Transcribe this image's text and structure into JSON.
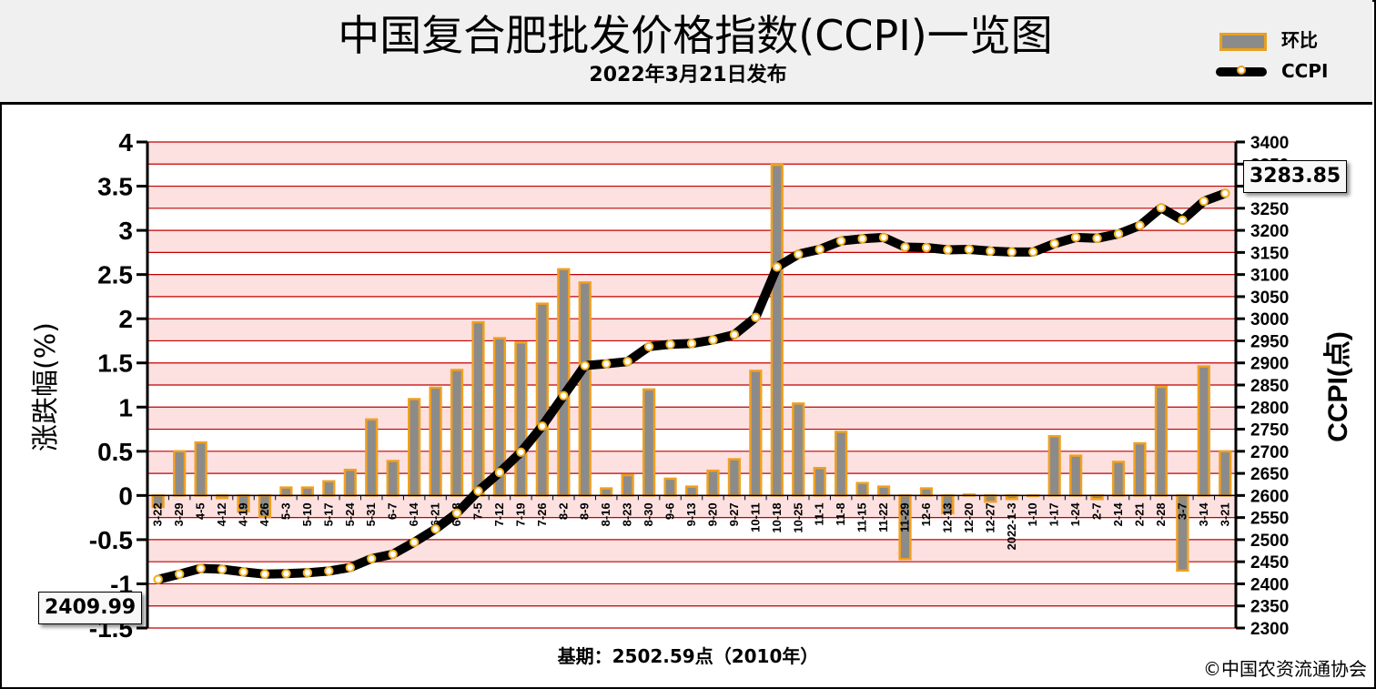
{
  "title": "中国复合肥批发价格指数(CCPI)一览图",
  "subtitle": "2022年3月21日发布",
  "legend": {
    "bar_label": "环比",
    "line_label": "CCPI"
  },
  "basis_text": "基期：2502.59点（2010年）",
  "copyright": "©中国农资流通协会",
  "first_value_label": "2409.99",
  "last_value_label": "3283.85",
  "colors": {
    "bar_fill": "#8b8b8b",
    "bar_edge": "#f0a020",
    "line": "#000000",
    "marker_edge": "#f0b020",
    "grid": "#c00000",
    "band": "#fde0e0"
  },
  "chart_data": {
    "type": "bar+line",
    "categories": [
      "3-22",
      "3-29",
      "4-5",
      "4-12",
      "4-19",
      "4-26",
      "5-3",
      "5-10",
      "5-17",
      "5-24",
      "5-31",
      "6-7",
      "6-14",
      "6-21",
      "6-28",
      "7-5",
      "7-12",
      "7-19",
      "7-26",
      "8-2",
      "8-9",
      "8-16",
      "8-23",
      "8-30",
      "9-6",
      "9-13",
      "9-20",
      "9-27",
      "10-11",
      "10-18",
      "10-25",
      "11-1",
      "11-8",
      "11-15",
      "11-22",
      "11-29",
      "12-6",
      "12-13",
      "12-20",
      "12-27",
      "2022-1-3",
      "1-10",
      "1-17",
      "1-24",
      "2-7",
      "2-14",
      "2-21",
      "2-28",
      "3-7",
      "3-14",
      "3-21"
    ],
    "series": [
      {
        "name": "环比",
        "axis": "left",
        "type": "bar",
        "values": [
          -0.13,
          0.5,
          0.6,
          -0.03,
          -0.18,
          -0.24,
          0.09,
          0.09,
          0.16,
          0.29,
          0.86,
          0.39,
          1.09,
          1.22,
          1.42,
          1.96,
          1.78,
          1.73,
          2.17,
          2.56,
          2.41,
          0.08,
          0.23,
          1.2,
          0.19,
          0.1,
          0.28,
          0.41,
          1.41,
          3.74,
          1.04,
          0.31,
          0.72,
          0.14,
          0.1,
          -0.72,
          0.08,
          -0.2,
          0.01,
          -0.07,
          -0.04,
          0.0,
          0.67,
          0.45,
          -0.04,
          0.38,
          0.59,
          1.23,
          -0.85,
          1.46,
          0.5
        ]
      },
      {
        "name": "CCPI",
        "axis": "right",
        "type": "line",
        "values": [
          2409.99,
          2422,
          2435,
          2433,
          2427,
          2422,
          2423,
          2425,
          2429,
          2437,
          2457,
          2467,
          2494,
          2524,
          2560,
          2610,
          2652,
          2698,
          2757,
          2826,
          2894,
          2898,
          2903,
          2937,
          2942,
          2944,
          2952,
          2964,
          3003,
          3117,
          3146,
          3157,
          3176,
          3181,
          3184,
          3162,
          3161,
          3156,
          3157,
          3153,
          3151,
          3151,
          3170,
          3184,
          3182,
          3192,
          3211,
          3251,
          3223,
          3266,
          3283.85
        ]
      }
    ],
    "ylabel_left": "涨跌幅(%)",
    "ylabel_right": "CCPI(点)",
    "ylim_left": [
      -1.5,
      4
    ],
    "ylim_right": [
      2300,
      3400
    ],
    "yticks_left": [
      "4",
      "3.5",
      "3",
      "2.5",
      "2",
      "1.5",
      "1",
      "0.5",
      "0",
      "-0.5",
      "-1",
      "-1.5"
    ],
    "yticks_right": [
      "3400",
      "3350",
      "3300",
      "3250",
      "3200",
      "3150",
      "3100",
      "3050",
      "3000",
      "2950",
      "2900",
      "2850",
      "2800",
      "2750",
      "2700",
      "2650",
      "2600",
      "2550",
      "2500",
      "2450",
      "2400",
      "2350",
      "2300"
    ],
    "grid": true,
    "legend_position": "top-right"
  }
}
